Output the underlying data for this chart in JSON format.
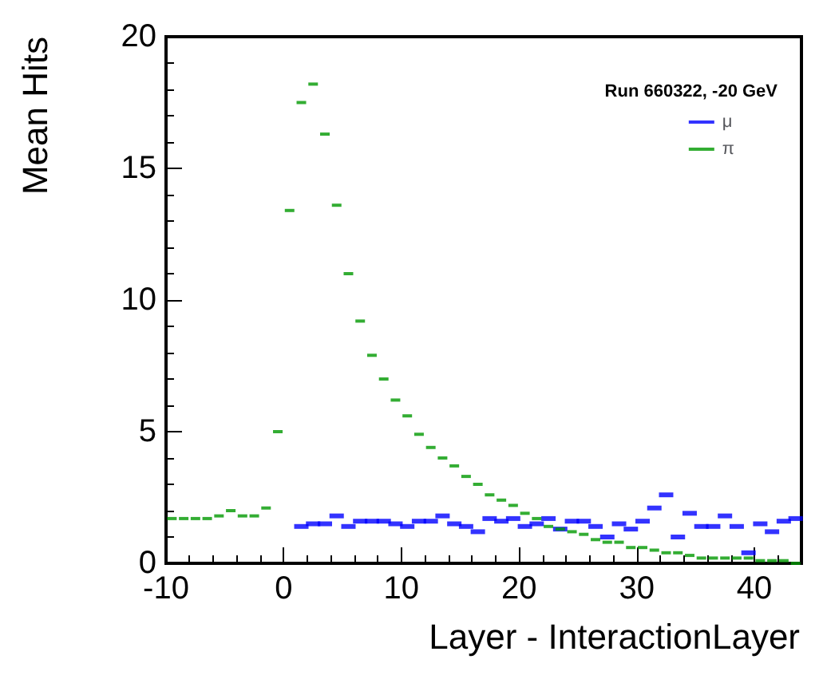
{
  "chart_data": {
    "type": "scatter",
    "xlabel": "Layer - InteractionLayer",
    "ylabel": "Mean Hits",
    "legend_title": "Run 660322, -20 GeV",
    "xlim": [
      -10,
      44
    ],
    "xticks": [
      -10,
      0,
      10,
      20,
      30,
      40
    ],
    "ylim": [
      0,
      20
    ],
    "yticks": [
      0,
      5,
      10,
      15,
      20
    ],
    "grid": false,
    "legend": "top right",
    "series": [
      {
        "name": "μ",
        "color": "#0000ff",
        "x": [
          1.5,
          2.5,
          3.5,
          4.5,
          5.5,
          6.5,
          7.5,
          8.5,
          9.5,
          10.5,
          11.5,
          12.5,
          13.5,
          14.5,
          15.5,
          16.5,
          17.5,
          18.5,
          19.5,
          20.5,
          21.5,
          22.5,
          23.5,
          24.5,
          25.5,
          26.5,
          27.5,
          28.5,
          29.5,
          30.5,
          31.5,
          32.5,
          33.5,
          34.5,
          35.5,
          36.5,
          37.5,
          38.5,
          39.5,
          40.5,
          41.5,
          42.5,
          43.5
        ],
        "values": [
          1.4,
          1.5,
          1.5,
          1.8,
          1.4,
          1.6,
          1.6,
          1.6,
          1.5,
          1.4,
          1.6,
          1.6,
          1.8,
          1.5,
          1.4,
          1.2,
          1.7,
          1.6,
          1.7,
          1.4,
          1.5,
          1.7,
          1.3,
          1.6,
          1.6,
          1.4,
          1.0,
          1.5,
          1.3,
          1.6,
          2.1,
          2.6,
          1.0,
          1.9,
          1.4,
          1.4,
          1.8,
          1.4,
          0.4,
          1.5,
          1.2,
          1.6,
          1.7
        ]
      },
      {
        "name": "π",
        "color": "#009900",
        "x": [
          -9.5,
          -8.5,
          -7.5,
          -6.5,
          -5.5,
          -4.5,
          -3.5,
          -2.5,
          -1.5,
          -0.5,
          0.5,
          1.5,
          2.5,
          3.5,
          4.5,
          5.5,
          6.5,
          7.5,
          8.5,
          9.5,
          10.5,
          11.5,
          12.5,
          13.5,
          14.5,
          15.5,
          16.5,
          17.5,
          18.5,
          19.5,
          20.5,
          21.5,
          22.5,
          23.5,
          24.5,
          25.5,
          26.5,
          27.5,
          28.5,
          29.5,
          30.5,
          31.5,
          32.5,
          33.5,
          34.5,
          35.5,
          36.5,
          37.5,
          38.5,
          39.5,
          40.5,
          41.5,
          42.5,
          43.5
        ],
        "values": [
          1.7,
          1.7,
          1.7,
          1.7,
          1.8,
          2.0,
          1.8,
          1.8,
          2.1,
          5.0,
          13.4,
          17.5,
          18.2,
          16.3,
          13.6,
          11.0,
          9.2,
          7.9,
          7.0,
          6.2,
          5.6,
          4.9,
          4.4,
          4.0,
          3.7,
          3.3,
          3.0,
          2.6,
          2.4,
          2.2,
          1.9,
          1.7,
          1.4,
          1.3,
          1.2,
          1.1,
          0.9,
          0.8,
          0.8,
          0.6,
          0.6,
          0.5,
          0.4,
          0.4,
          0.3,
          0.2,
          0.2,
          0.2,
          0.2,
          0.2,
          0.1,
          0.1,
          0.1,
          0.0
        ]
      }
    ]
  }
}
